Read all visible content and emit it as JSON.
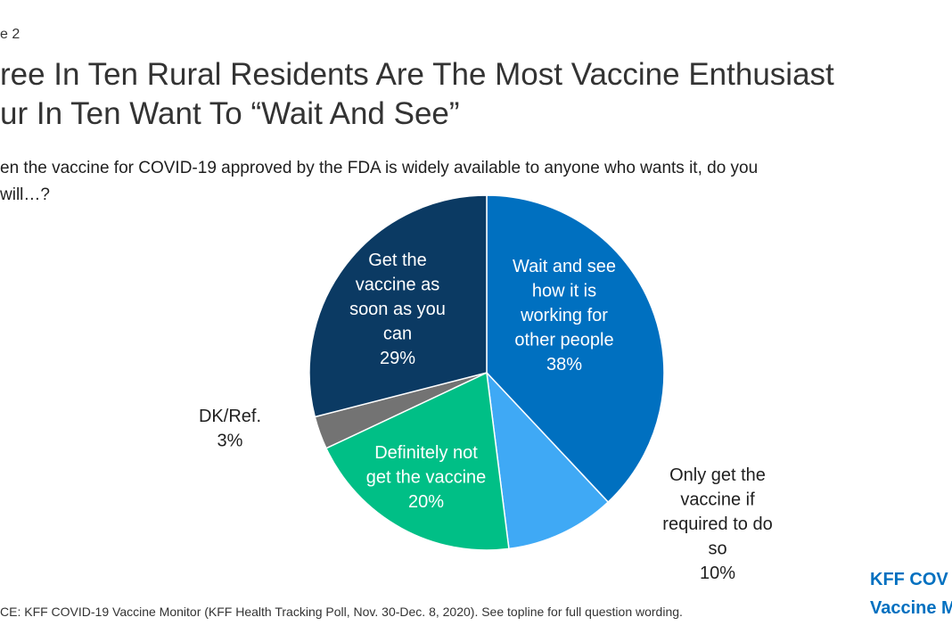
{
  "figure_label": "e 2",
  "title_lines": [
    "ree In Ten Rural Residents Are The Most Vaccine Enthusiast",
    "ur In Ten Want To “Wait And See”"
  ],
  "question_lines": [
    "en the vaccine for COVID-19 approved by the FDA is widely available to anyone who wants it, do you",
    "will…?"
  ],
  "source": "CE: KFF COVID-19 Vaccine Monitor (KFF Health Tracking Poll, Nov. 30-Dec. 8, 2020). See topline for full question wording.",
  "logo_lines": [
    "KFF COV",
    "Vaccine M"
  ],
  "colors": {
    "wait": "#0070c0",
    "required": "#3fa9f5",
    "not": "#00bf86",
    "dk": "#737373",
    "soon": "#0b3a63",
    "brand": "#0070c0"
  },
  "chart_data": {
    "type": "pie",
    "slices": [
      {
        "lines": [
          "Wait and see",
          "how it is",
          "working for",
          "other people"
        ],
        "value_label": "38%",
        "value": 38,
        "color": "#0070c0",
        "label_color": "#ffffff"
      },
      {
        "lines": [
          "Only get the",
          "vaccine if",
          "required to do",
          "so"
        ],
        "value_label": "10%",
        "value": 10,
        "color": "#3fa9f5",
        "label_color": "#1f1f1f"
      },
      {
        "lines": [
          "Definitely not",
          "get the vaccine"
        ],
        "value_label": "20%",
        "value": 20,
        "color": "#00bf86",
        "label_color": "#ffffff"
      },
      {
        "lines": [
          "DK/Ref."
        ],
        "value_label": "3%",
        "value": 3,
        "color": "#737373",
        "label_color": "#1f1f1f"
      },
      {
        "lines": [
          "Get the",
          "vaccine as",
          "soon as you",
          "can"
        ],
        "value_label": "29%",
        "value": 29,
        "color": "#0b3a63",
        "label_color": "#ffffff"
      }
    ]
  }
}
